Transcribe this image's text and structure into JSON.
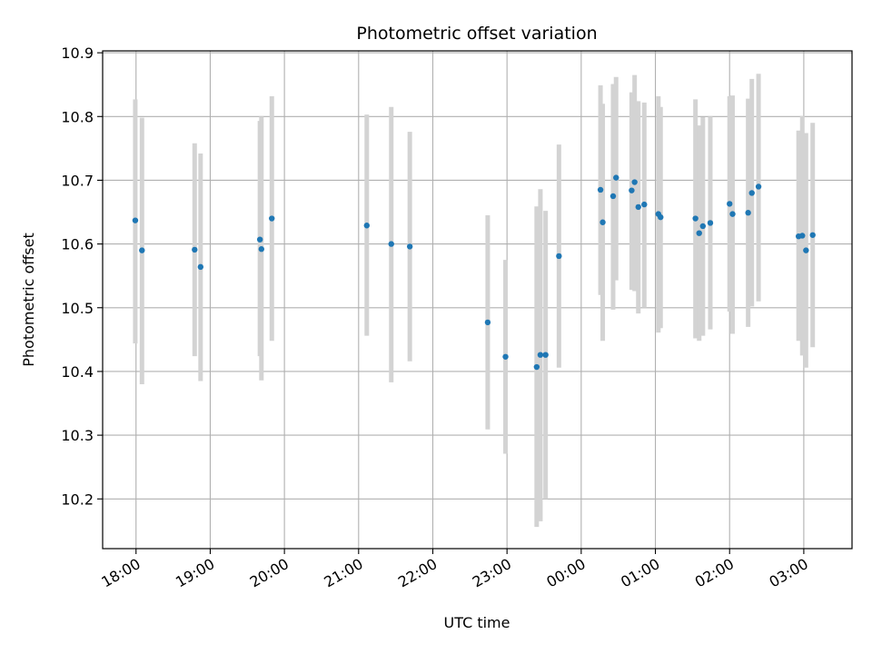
{
  "chart_data": {
    "type": "scatter",
    "title": "Photometric offset variation",
    "xlabel": "UTC time",
    "ylabel": "Photometric offset",
    "grid": true,
    "xlim": [
      17.55,
      27.65
    ],
    "ylim": [
      10.122,
      10.903
    ],
    "x_tick_values": [
      18,
      19,
      20,
      21,
      22,
      23,
      24,
      25,
      26,
      27
    ],
    "x_tick_labels": [
      "18:00",
      "19:00",
      "20:00",
      "21:00",
      "22:00",
      "23:00",
      "00:00",
      "01:00",
      "02:00",
      "03:00"
    ],
    "y_tick_values": [
      10.2,
      10.3,
      10.4,
      10.5,
      10.6,
      10.7,
      10.8,
      10.9
    ],
    "y_tick_labels": [
      "10.2",
      "10.3",
      "10.4",
      "10.5",
      "10.6",
      "10.7",
      "10.8",
      "10.9"
    ],
    "colors": {
      "point": "#1f77b4",
      "errorbar": "#d3d3d3",
      "grid": "#b0b0b0"
    },
    "points": [
      {
        "x": 17.99,
        "y": 10.637,
        "lo": 10.444,
        "hi": 10.827
      },
      {
        "x": 18.08,
        "y": 10.59,
        "lo": 10.38,
        "hi": 10.798
      },
      {
        "x": 18.79,
        "y": 10.591,
        "lo": 10.424,
        "hi": 10.758
      },
      {
        "x": 18.87,
        "y": 10.564,
        "lo": 10.385,
        "hi": 10.742
      },
      {
        "x": 19.67,
        "y": 10.607,
        "lo": 10.424,
        "hi": 10.793
      },
      {
        "x": 19.69,
        "y": 10.592,
        "lo": 10.386,
        "hi": 10.8
      },
      {
        "x": 19.83,
        "y": 10.64,
        "lo": 10.448,
        "hi": 10.832
      },
      {
        "x": 21.11,
        "y": 10.629,
        "lo": 10.456,
        "hi": 10.803
      },
      {
        "x": 21.44,
        "y": 10.6,
        "lo": 10.383,
        "hi": 10.815
      },
      {
        "x": 21.69,
        "y": 10.596,
        "lo": 10.416,
        "hi": 10.776
      },
      {
        "x": 22.74,
        "y": 10.477,
        "lo": 10.309,
        "hi": 10.645
      },
      {
        "x": 22.98,
        "y": 10.423,
        "lo": 10.271,
        "hi": 10.575
      },
      {
        "x": 23.4,
        "y": 10.407,
        "lo": 10.156,
        "hi": 10.659
      },
      {
        "x": 23.45,
        "y": 10.426,
        "lo": 10.165,
        "hi": 10.686
      },
      {
        "x": 23.52,
        "y": 10.426,
        "lo": 10.2,
        "hi": 10.652
      },
      {
        "x": 23.7,
        "y": 10.581,
        "lo": 10.406,
        "hi": 10.756
      },
      {
        "x": 24.26,
        "y": 10.685,
        "lo": 10.52,
        "hi": 10.849
      },
      {
        "x": 24.29,
        "y": 10.634,
        "lo": 10.448,
        "hi": 10.82
      },
      {
        "x": 24.43,
        "y": 10.675,
        "lo": 10.497,
        "hi": 10.851
      },
      {
        "x": 24.47,
        "y": 10.704,
        "lo": 10.543,
        "hi": 10.862
      },
      {
        "x": 24.68,
        "y": 10.684,
        "lo": 10.528,
        "hi": 10.838
      },
      {
        "x": 24.72,
        "y": 10.697,
        "lo": 10.526,
        "hi": 10.865
      },
      {
        "x": 24.77,
        "y": 10.658,
        "lo": 10.491,
        "hi": 10.824
      },
      {
        "x": 24.85,
        "y": 10.662,
        "lo": 10.5,
        "hi": 10.822
      },
      {
        "x": 25.04,
        "y": 10.647,
        "lo": 10.461,
        "hi": 10.832
      },
      {
        "x": 25.07,
        "y": 10.642,
        "lo": 10.468,
        "hi": 10.815
      },
      {
        "x": 25.54,
        "y": 10.64,
        "lo": 10.452,
        "hi": 10.827
      },
      {
        "x": 25.59,
        "y": 10.617,
        "lo": 10.448,
        "hi": 10.786
      },
      {
        "x": 25.64,
        "y": 10.628,
        "lo": 10.456,
        "hi": 10.799
      },
      {
        "x": 25.74,
        "y": 10.633,
        "lo": 10.466,
        "hi": 10.8
      },
      {
        "x": 26.0,
        "y": 10.663,
        "lo": 10.494,
        "hi": 10.832
      },
      {
        "x": 26.04,
        "y": 10.647,
        "lo": 10.459,
        "hi": 10.833
      },
      {
        "x": 26.25,
        "y": 10.649,
        "lo": 10.47,
        "hi": 10.828
      },
      {
        "x": 26.3,
        "y": 10.68,
        "lo": 10.502,
        "hi": 10.859
      },
      {
        "x": 26.39,
        "y": 10.69,
        "lo": 10.51,
        "hi": 10.867
      },
      {
        "x": 26.93,
        "y": 10.612,
        "lo": 10.448,
        "hi": 10.778
      },
      {
        "x": 26.98,
        "y": 10.613,
        "lo": 10.425,
        "hi": 10.801
      },
      {
        "x": 27.03,
        "y": 10.59,
        "lo": 10.406,
        "hi": 10.774
      },
      {
        "x": 27.12,
        "y": 10.614,
        "lo": 10.438,
        "hi": 10.79
      }
    ]
  }
}
